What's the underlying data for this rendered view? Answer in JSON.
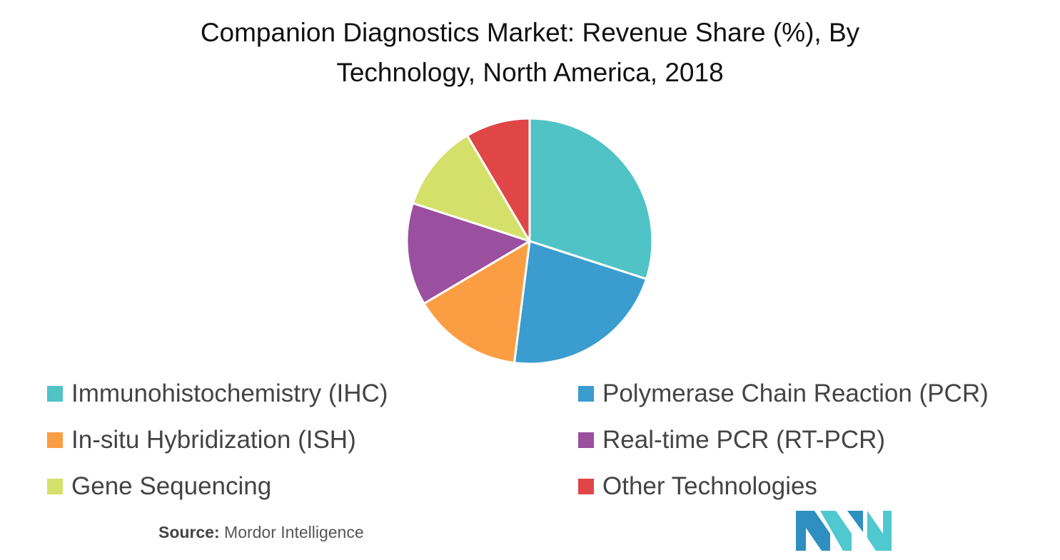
{
  "chart_data": {
    "type": "pie",
    "title": "Companion Diagnostics Market: Revenue Share (%), By Technology, North America, 2018",
    "title_lines": [
      "Companion Diagnostics Market: Revenue Share (%), By",
      "Technology, North America, 2018"
    ],
    "categories": [
      "Immunohistochemistry (IHC)",
      "Polymerase Chain Reaction (PCR)",
      "In-situ Hybridization (ISH)",
      "Real-time PCR (RT-PCR)",
      "Gene Sequencing",
      "Other Technologies"
    ],
    "values": [
      30,
      22,
      14.5,
      13.5,
      11.5,
      8.5
    ],
    "colors": [
      "#4fc3c6",
      "#3a9ccf",
      "#fb9e43",
      "#9b4f9f",
      "#d4e06a",
      "#e04646"
    ],
    "legend_position": "bottom",
    "start_angle_deg": 0,
    "direction": "clockwise"
  },
  "source": {
    "label": "Source:",
    "text": "Mordor Intelligence"
  },
  "logo": {
    "icon": "mordor-intelligence-logo",
    "colors": [
      "#2f8fc0",
      "#4fc9cf"
    ]
  }
}
